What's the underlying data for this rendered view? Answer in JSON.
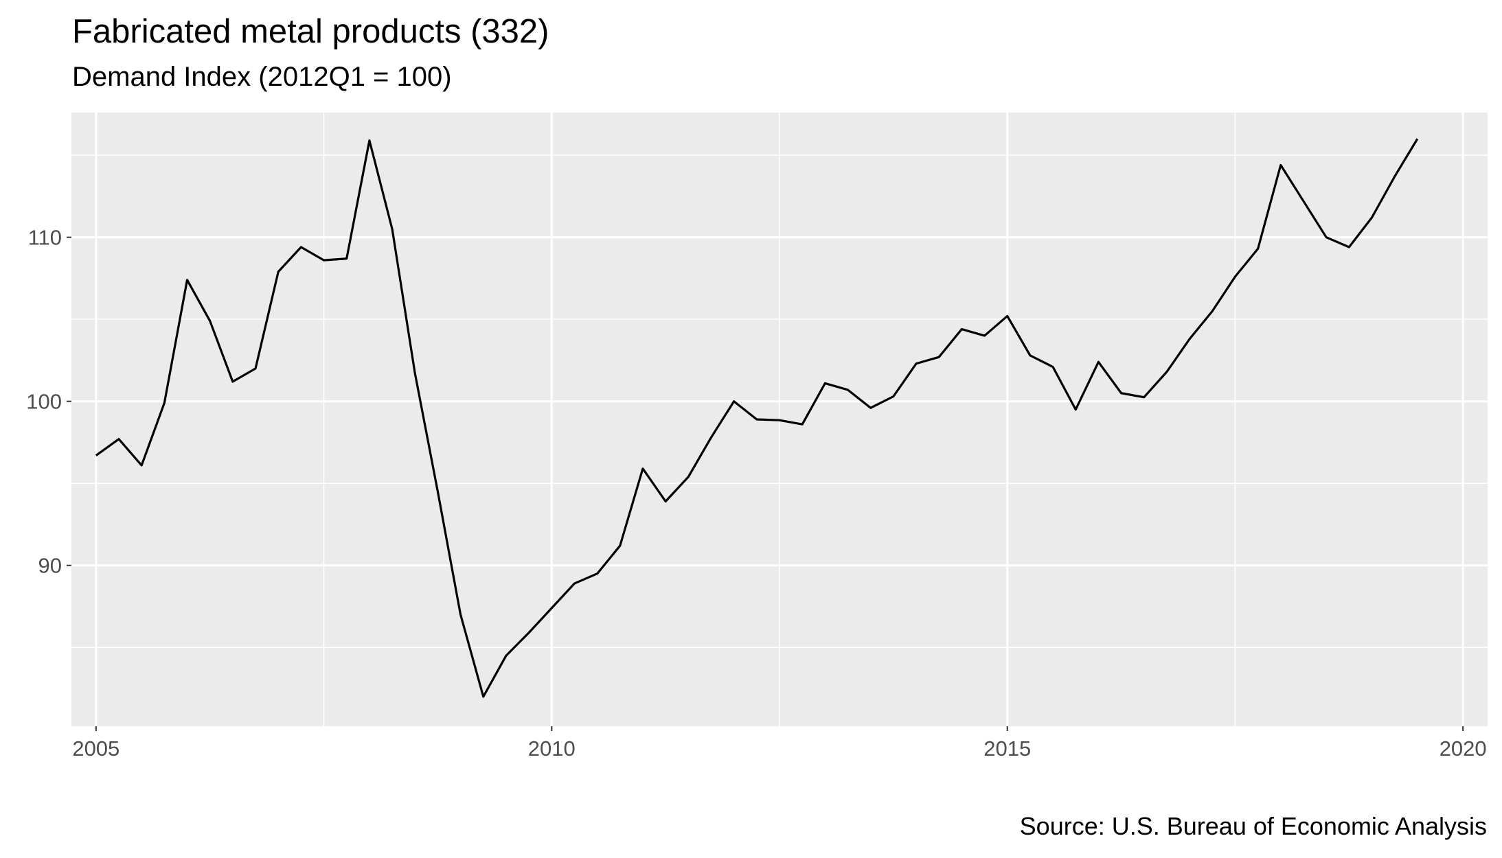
{
  "chart_data": {
    "type": "line",
    "title": "Fabricated metal products (332)",
    "subtitle": "Demand Index (2012Q1 = 100)",
    "caption": "Source: U.S. Bureau of Economic Analysis",
    "xlabel": "",
    "ylabel": "",
    "xlim": [
      2004.73,
      2020.27
    ],
    "ylim": [
      80.2,
      117.6
    ],
    "x_ticks": [
      2005,
      2010,
      2015,
      2020
    ],
    "x_tick_labels": [
      "2005",
      "2010",
      "2015",
      "2020"
    ],
    "y_ticks": [
      90,
      100,
      110
    ],
    "y_tick_labels": [
      "90",
      "100",
      "110"
    ],
    "grid": true,
    "legend": "none",
    "colors": {
      "panel_background": "#ebebeb",
      "grid_line": "#ffffff",
      "series_line": "#000000",
      "tick_label": "#4d4d4d"
    },
    "series": [
      {
        "x": [
          2005.0,
          2005.25,
          2005.5,
          2005.75,
          2006.0,
          2006.25,
          2006.5,
          2006.75,
          2007.0,
          2007.25,
          2007.5,
          2007.75,
          2008.0,
          2008.25,
          2008.5,
          2008.75,
          2009.0,
          2009.25,
          2009.5,
          2009.75,
          2010.0,
          2010.25,
          2010.5,
          2010.75,
          2011.0,
          2011.25,
          2011.5,
          2011.75,
          2012.0,
          2012.25,
          2012.5,
          2012.75,
          2013.0,
          2013.25,
          2013.5,
          2013.75,
          2014.0,
          2014.25,
          2014.5,
          2014.75,
          2015.0,
          2015.25,
          2015.5,
          2015.75,
          2016.0,
          2016.25,
          2016.5,
          2016.75,
          2017.0,
          2017.25,
          2017.5,
          2017.75,
          2018.0,
          2018.25,
          2018.5,
          2018.75,
          2019.0,
          2019.25,
          2019.5
        ],
        "values": [
          96.7,
          97.7,
          96.1,
          99.9,
          107.4,
          104.9,
          101.2,
          102.0,
          107.9,
          109.4,
          108.6,
          108.7,
          115.9,
          110.5,
          101.7,
          94.5,
          87.0,
          82.0,
          84.5,
          85.9,
          87.4,
          88.9,
          89.5,
          91.2,
          95.9,
          93.9,
          95.4,
          97.8,
          100.0,
          98.9,
          98.85,
          98.6,
          101.1,
          100.7,
          99.6,
          100.3,
          102.3,
          102.7,
          104.4,
          104.0,
          105.2,
          102.8,
          102.1,
          99.5,
          102.4,
          100.5,
          100.25,
          101.8,
          103.8,
          105.5,
          107.6,
          109.3,
          114.4,
          112.2,
          110.0,
          109.4,
          111.2,
          113.7,
          116.0
        ]
      }
    ]
  }
}
